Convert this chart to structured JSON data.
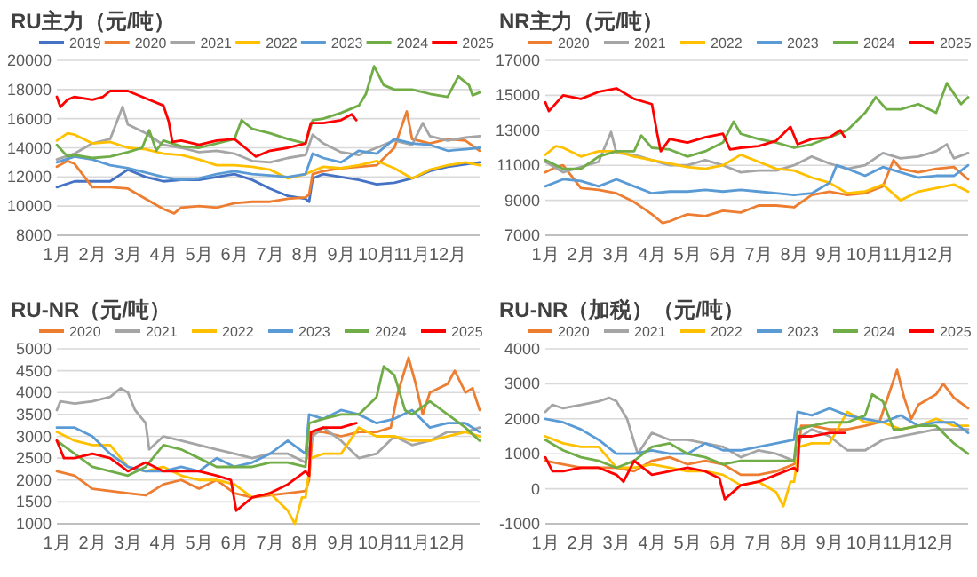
{
  "chart_data": [
    {
      "type": "line",
      "title": "RU主力（元/吨）",
      "xlim": [
        1,
        12.9
      ],
      "xticks": [
        {
          "value": 1,
          "label": "1月"
        },
        {
          "value": 2,
          "label": "2月"
        },
        {
          "value": 3,
          "label": "3月"
        },
        {
          "value": 4,
          "label": "4月"
        },
        {
          "value": 5,
          "label": "5月"
        },
        {
          "value": 6,
          "label": "6月"
        },
        {
          "value": 7,
          "label": "7月"
        },
        {
          "value": 8,
          "label": "8月"
        },
        {
          "value": 9,
          "label": "9月"
        },
        {
          "value": 10,
          "label": "10月"
        },
        {
          "value": 11,
          "label": "11月"
        },
        {
          "value": 12,
          "label": "12月"
        }
      ],
      "ylim": [
        8000,
        20000
      ],
      "yticks": [
        8000,
        10000,
        12000,
        14000,
        16000,
        18000,
        20000
      ],
      "grid": "y",
      "legend": "top",
      "line_style": "solid",
      "series": [
        {
          "name": "2019",
          "color": "#4472c4",
          "x": [
            1,
            1.5,
            2,
            2.5,
            3,
            3.5,
            4,
            4.5,
            5,
            5.5,
            6,
            6.5,
            7,
            7.5,
            8,
            8.1,
            8.2,
            8.5,
            9,
            9.5,
            10,
            10.5,
            11,
            11.5,
            12,
            12.9
          ],
          "values": [
            11300,
            11700,
            11700,
            11700,
            12500,
            12000,
            11700,
            11800,
            11800,
            12000,
            12200,
            11800,
            11200,
            10700,
            10500,
            10300,
            11900,
            12200,
            12000,
            11800,
            11500,
            11600,
            11900,
            12400,
            12700,
            13000
          ]
        },
        {
          "name": "2020",
          "color": "#ed7d31",
          "x": [
            1,
            1.3,
            1.5,
            2,
            2.5,
            3,
            3.5,
            4,
            4.3,
            4.5,
            5,
            5.5,
            6,
            6.5,
            7,
            7.5,
            8,
            8.1,
            8.2,
            8.5,
            9,
            9.5,
            10,
            10.5,
            10.85,
            11,
            11.5,
            12,
            12.5,
            12.9
          ],
          "values": [
            12700,
            13100,
            12900,
            11300,
            11300,
            11200,
            10500,
            9800,
            9500,
            9900,
            10000,
            9900,
            10200,
            10300,
            10300,
            10500,
            10600,
            10800,
            12200,
            12400,
            12600,
            12700,
            12800,
            14000,
            16500,
            14600,
            14300,
            14600,
            14500,
            13800
          ]
        },
        {
          "name": "2021",
          "color": "#a5a5a5",
          "x": [
            1,
            1.5,
            2,
            2.5,
            2.85,
            3,
            3.5,
            4,
            4.5,
            5,
            5.5,
            6,
            6.5,
            7,
            7.5,
            8,
            8.2,
            8.5,
            9,
            9.5,
            10,
            10.5,
            11,
            11.3,
            11.5,
            12,
            12.5,
            12.9
          ],
          "values": [
            13200,
            13600,
            14300,
            14600,
            16800,
            15600,
            15000,
            14200,
            14000,
            13700,
            13800,
            13600,
            13100,
            13000,
            13300,
            13500,
            14900,
            14300,
            13700,
            13500,
            14000,
            14500,
            14200,
            15700,
            14800,
            14500,
            14700,
            14800
          ]
        },
        {
          "name": "2022",
          "color": "#ffc000",
          "x": [
            1,
            1.3,
            1.5,
            2,
            2.5,
            3,
            3.5,
            4,
            4.5,
            5,
            5.5,
            6,
            6.5,
            7,
            7.5,
            8,
            8.5,
            9,
            9.5,
            10,
            10.5,
            11,
            11.5,
            12,
            12.5,
            12.9
          ],
          "values": [
            14500,
            15000,
            14900,
            14300,
            14400,
            14000,
            13900,
            13600,
            13500,
            13200,
            12800,
            12800,
            12700,
            12500,
            11900,
            12200,
            12700,
            12600,
            12800,
            13100,
            12600,
            11900,
            12500,
            12800,
            13000,
            12800
          ]
        },
        {
          "name": "2023",
          "color": "#5b9bd5",
          "x": [
            1,
            1.5,
            2,
            2.5,
            3,
            3.5,
            4,
            4.5,
            5,
            5.5,
            6,
            6.5,
            7,
            7.5,
            8,
            8.2,
            8.5,
            9,
            9.5,
            10,
            10.5,
            11,
            11.5,
            12,
            12.5,
            12.9
          ],
          "values": [
            13000,
            13400,
            13200,
            12800,
            12600,
            12300,
            12000,
            11800,
            11900,
            12200,
            12400,
            12200,
            12100,
            12000,
            12200,
            13600,
            13300,
            13000,
            13800,
            13600,
            14600,
            14300,
            14200,
            13800,
            13900,
            14000
          ]
        },
        {
          "name": "2024",
          "color": "#70ad47",
          "x": [
            1,
            1.3,
            1.5,
            2,
            2.5,
            3,
            3.4,
            3.6,
            3.8,
            4,
            4.5,
            5,
            5.5,
            6,
            6.2,
            6.5,
            7,
            7.5,
            8,
            8.2,
            8.5,
            9,
            9.5,
            9.7,
            9.93,
            10.2,
            10.5,
            11,
            11.5,
            12,
            12.3,
            12.6,
            12.7,
            12.9
          ],
          "values": [
            14200,
            13400,
            13500,
            13300,
            13400,
            13700,
            14000,
            15200,
            13800,
            14500,
            14100,
            14000,
            14300,
            14600,
            15900,
            15300,
            15000,
            14600,
            14300,
            15900,
            16000,
            16400,
            16900,
            17700,
            19600,
            18300,
            18000,
            18000,
            17700,
            17500,
            18900,
            18300,
            17600,
            17800
          ]
        },
        {
          "name": "2025",
          "color": "#ff0000",
          "x": [
            1,
            1.1,
            1.3,
            1.5,
            2,
            2.3,
            2.5,
            3,
            3.5,
            4,
            4.15,
            4.25,
            4.5,
            5,
            5.5,
            6,
            6.4,
            6.6,
            7,
            7.5,
            8,
            8.15,
            8.5,
            9,
            9.3,
            9.43
          ],
          "values": [
            17500,
            16800,
            17300,
            17500,
            17300,
            17500,
            17900,
            17900,
            17400,
            16900,
            15800,
            14400,
            14500,
            14200,
            14500,
            14600,
            13800,
            13400,
            13800,
            14000,
            14300,
            15700,
            15700,
            15900,
            16300,
            15900
          ]
        }
      ]
    },
    {
      "type": "line",
      "title": "NR主力（元/吨）",
      "xlim": [
        1,
        12.9
      ],
      "xticks": [
        {
          "value": 1,
          "label": "1月"
        },
        {
          "value": 2,
          "label": "2月"
        },
        {
          "value": 3,
          "label": "3月"
        },
        {
          "value": 4,
          "label": "4月"
        },
        {
          "value": 5,
          "label": "5月"
        },
        {
          "value": 6,
          "label": "6月"
        },
        {
          "value": 7,
          "label": "7月"
        },
        {
          "value": 8,
          "label": "8月"
        },
        {
          "value": 9,
          "label": "9月"
        },
        {
          "value": 10,
          "label": "10月"
        },
        {
          "value": 11,
          "label": "11月"
        },
        {
          "value": 12,
          "label": "12月"
        }
      ],
      "ylim": [
        7000,
        17000
      ],
      "yticks": [
        7000,
        9000,
        11000,
        13000,
        15000,
        17000
      ],
      "grid": "y",
      "legend": "top",
      "line_style": "solid",
      "series": [
        {
          "name": "2020",
          "color": "#ed7d31",
          "x": [
            1,
            1.3,
            1.5,
            2,
            2.5,
            3,
            3.5,
            4,
            4.3,
            4.5,
            5,
            5.5,
            6,
            6.5,
            7,
            7.5,
            8,
            8.5,
            9,
            9.5,
            10,
            10.5,
            10.8,
            11,
            11.5,
            12,
            12.5,
            12.9
          ],
          "values": [
            10600,
            10900,
            11000,
            9700,
            9600,
            9400,
            8900,
            8200,
            7700,
            7800,
            8200,
            8100,
            8400,
            8300,
            8700,
            8700,
            8600,
            9300,
            9500,
            9300,
            9400,
            9800,
            11300,
            10800,
            10600,
            10800,
            10900,
            10200
          ]
        },
        {
          "name": "2021",
          "color": "#a5a5a5",
          "x": [
            1,
            1.5,
            2,
            2.5,
            2.85,
            3,
            3.5,
            4,
            4.5,
            5,
            5.5,
            6,
            6.5,
            7,
            7.5,
            8,
            8.5,
            9,
            9.5,
            10,
            10.5,
            11,
            11.5,
            12,
            12.3,
            12.5,
            12.9
          ],
          "values": [
            11200,
            10600,
            10900,
            11200,
            12900,
            11700,
            11600,
            11300,
            11000,
            11000,
            11300,
            11000,
            10600,
            10700,
            10700,
            11000,
            11500,
            11100,
            10800,
            11000,
            11700,
            11400,
            11500,
            11800,
            12200,
            11400,
            11700
          ]
        },
        {
          "name": "2022",
          "color": "#ffc000",
          "x": [
            1,
            1.3,
            1.5,
            2,
            2.5,
            3,
            3.5,
            4,
            4.5,
            5,
            5.5,
            6,
            6.5,
            7,
            7.5,
            8,
            8.5,
            9,
            9.5,
            10,
            10.5,
            11,
            11.5,
            12,
            12.5,
            12.9
          ],
          "values": [
            11600,
            12100,
            12000,
            11500,
            11800,
            11800,
            11500,
            11300,
            11100,
            10900,
            10800,
            11000,
            11600,
            11200,
            10800,
            10700,
            10300,
            10000,
            9400,
            9500,
            9900,
            9000,
            9500,
            9700,
            9900,
            9500
          ]
        },
        {
          "name": "2023",
          "color": "#5b9bd5",
          "x": [
            1,
            1.5,
            2,
            2.5,
            3,
            3.5,
            4,
            4.5,
            5,
            5.5,
            6,
            6.5,
            7,
            7.5,
            8,
            8.5,
            9,
            9.2,
            9.5,
            10,
            10.5,
            11,
            11.5,
            12,
            12.5,
            12.9
          ],
          "values": [
            9800,
            10200,
            10100,
            9800,
            10200,
            9800,
            9400,
            9500,
            9500,
            9600,
            9500,
            9600,
            9500,
            9400,
            9300,
            9400,
            10000,
            11000,
            10800,
            10400,
            10900,
            10600,
            10300,
            10400,
            10400,
            11000
          ]
        },
        {
          "name": "2024",
          "color": "#70ad47",
          "x": [
            1,
            1.5,
            2,
            2.5,
            3,
            3.5,
            3.7,
            4,
            4.5,
            5,
            5.5,
            6,
            6.3,
            6.5,
            7,
            7.5,
            8,
            8.5,
            9,
            9.5,
            10,
            10.3,
            10.6,
            11,
            11.5,
            12,
            12.3,
            12.7,
            12.9
          ],
          "values": [
            11300,
            10800,
            10800,
            11500,
            11800,
            11800,
            12700,
            12000,
            11900,
            11500,
            11800,
            12300,
            13500,
            12800,
            12500,
            12300,
            12000,
            12200,
            12600,
            13000,
            14000,
            14900,
            14200,
            14200,
            14500,
            14000,
            15700,
            14500,
            14900
          ]
        },
        {
          "name": "2025",
          "color": "#ff0000",
          "x": [
            1,
            1.1,
            1.5,
            2,
            2.5,
            3,
            3.5,
            4,
            4.15,
            4.25,
            4.5,
            5,
            5.5,
            6,
            6.2,
            6.5,
            7,
            7.5,
            7.9,
            8.1,
            8.5,
            9,
            9.3,
            9.43
          ],
          "values": [
            14600,
            14100,
            15000,
            14800,
            15200,
            15400,
            14800,
            14500,
            12800,
            11800,
            12500,
            12300,
            12600,
            12800,
            11900,
            12000,
            12100,
            12400,
            13200,
            12200,
            12500,
            12600,
            13000,
            12600
          ]
        }
      ]
    },
    {
      "type": "line",
      "title": "RU-NR（元/吨）",
      "xlim": [
        1,
        12.9
      ],
      "xticks": [
        {
          "value": 1,
          "label": "1月"
        },
        {
          "value": 2,
          "label": "2月"
        },
        {
          "value": 3,
          "label": "3月"
        },
        {
          "value": 4,
          "label": "4月"
        },
        {
          "value": 5,
          "label": "5月"
        },
        {
          "value": 6,
          "label": "6月"
        },
        {
          "value": 7,
          "label": "7月"
        },
        {
          "value": 8,
          "label": "8月"
        },
        {
          "value": 9,
          "label": "9月"
        },
        {
          "value": 10,
          "label": "10月"
        },
        {
          "value": 11,
          "label": "11月"
        },
        {
          "value": 12,
          "label": "12月"
        }
      ],
      "ylim": [
        1000,
        5000
      ],
      "yticks": [
        1000,
        1500,
        2000,
        2500,
        3000,
        3500,
        4000,
        4500,
        5000
      ],
      "grid": "y",
      "legend": "top",
      "line_style": "solid",
      "series": [
        {
          "name": "2020",
          "color": "#ed7d31",
          "x": [
            1,
            1.5,
            2,
            2.5,
            3,
            3.5,
            4,
            4.5,
            5,
            5.5,
            6,
            6.5,
            7,
            7.5,
            8,
            8.1,
            8.2,
            8.5,
            9,
            9.5,
            10,
            10.4,
            10.6,
            10.9,
            11.1,
            11.3,
            11.5,
            12,
            12.2,
            12.5,
            12.7,
            12.9
          ],
          "values": [
            2200,
            2100,
            1800,
            1750,
            1700,
            1650,
            1900,
            2000,
            1800,
            2000,
            1700,
            1600,
            1650,
            1700,
            1750,
            2000,
            3100,
            3100,
            3000,
            3100,
            3100,
            3200,
            4000,
            4800,
            4200,
            3500,
            4000,
            4200,
            4500,
            4000,
            4100,
            3600
          ]
        },
        {
          "name": "2021",
          "color": "#a5a5a5",
          "x": [
            1,
            1.1,
            1.5,
            2,
            2.5,
            2.8,
            3,
            3.2,
            3.5,
            3.6,
            4,
            4.5,
            5,
            5.5,
            6,
            6.5,
            7,
            7.5,
            8,
            8.2,
            8.5,
            9,
            9.5,
            10,
            10.5,
            11,
            11.5,
            12,
            12.5,
            12.9
          ],
          "values": [
            3600,
            3800,
            3750,
            3800,
            3900,
            4100,
            4000,
            3600,
            3300,
            2700,
            3000,
            2900,
            2800,
            2700,
            2600,
            2500,
            2600,
            2600,
            2400,
            3000,
            3200,
            2900,
            2500,
            2600,
            3000,
            2800,
            2900,
            3100,
            3100,
            3200
          ]
        },
        {
          "name": "2022",
          "color": "#ffc000",
          "x": [
            1,
            1.5,
            2,
            2.5,
            3,
            3.5,
            4,
            4.5,
            5,
            5.5,
            6,
            6.5,
            7,
            7.5,
            7.7,
            7.9,
            8,
            8.15,
            8.5,
            9,
            9.5,
            10,
            10.5,
            11,
            11.5,
            12,
            12.5,
            12.9
          ],
          "values": [
            3100,
            2900,
            2800,
            2800,
            2300,
            2200,
            2300,
            2100,
            2000,
            2000,
            1900,
            1600,
            1700,
            1300,
            1000,
            1600,
            1600,
            2500,
            2600,
            2600,
            3200,
            3000,
            3000,
            2900,
            2900,
            3000,
            3100,
            3000
          ]
        },
        {
          "name": "2023",
          "color": "#5b9bd5",
          "x": [
            1,
            1.5,
            2,
            2.5,
            3,
            3.5,
            4,
            4.5,
            5,
            5.5,
            6,
            6.5,
            7,
            7.5,
            8,
            8.1,
            8.5,
            9,
            9.5,
            10,
            10.5,
            11,
            11.5,
            12,
            12.5,
            12.9
          ],
          "values": [
            3200,
            3200,
            3000,
            2600,
            2300,
            2200,
            2200,
            2300,
            2200,
            2500,
            2300,
            2400,
            2600,
            2900,
            2600,
            3500,
            3400,
            3600,
            3500,
            3300,
            3400,
            3600,
            3200,
            3300,
            3300,
            3100
          ]
        },
        {
          "name": "2024",
          "color": "#70ad47",
          "x": [
            1,
            1.5,
            2,
            2.5,
            3,
            3.5,
            4,
            4.5,
            5,
            5.5,
            6,
            6.5,
            7,
            7.5,
            8,
            8.1,
            8.5,
            9,
            9.5,
            10,
            10.2,
            10.5,
            10.8,
            11,
            11.5,
            12,
            12.5,
            12.9
          ],
          "values": [
            2900,
            2600,
            2300,
            2200,
            2100,
            2300,
            2800,
            2700,
            2500,
            2300,
            2300,
            2300,
            2400,
            2400,
            2300,
            3300,
            3400,
            3500,
            3500,
            3900,
            4600,
            4400,
            3600,
            3500,
            3800,
            3500,
            3200,
            2900
          ]
        },
        {
          "name": "2025",
          "color": "#ff0000",
          "x": [
            1,
            1.2,
            1.5,
            2,
            2.5,
            3,
            3.5,
            4,
            4.5,
            5,
            5.5,
            5.9,
            6.05,
            6.5,
            7,
            7.5,
            8,
            8.1,
            8.15,
            8.5,
            9,
            9.43
          ],
          "values": [
            2900,
            2500,
            2500,
            2600,
            2500,
            2200,
            2400,
            2200,
            2200,
            2200,
            2100,
            2000,
            1300,
            1600,
            1700,
            1900,
            2200,
            2100,
            3100,
            3200,
            3200,
            3300
          ]
        }
      ]
    },
    {
      "type": "line",
      "title": "RU-NR（加税）（元/吨）",
      "xlim": [
        1,
        12.9
      ],
      "xticks": [
        {
          "value": 1,
          "label": "1月"
        },
        {
          "value": 2,
          "label": "2月"
        },
        {
          "value": 3,
          "label": "3月"
        },
        {
          "value": 4,
          "label": "4月"
        },
        {
          "value": 5,
          "label": "5月"
        },
        {
          "value": 6,
          "label": "6月"
        },
        {
          "value": 7,
          "label": "7月"
        },
        {
          "value": 8,
          "label": "8月"
        },
        {
          "value": 9,
          "label": "9月"
        },
        {
          "value": 10,
          "label": "10月"
        },
        {
          "value": 11,
          "label": "11月"
        },
        {
          "value": 12,
          "label": "12月"
        }
      ],
      "ylim": [
        -1000,
        4000
      ],
      "yticks": [
        {
          "value": -1000,
          "label": "-1000"
        },
        0,
        1000,
        2000,
        3000,
        4000
      ],
      "grid": "y",
      "legend": "top",
      "line_style": "solid",
      "series": [
        {
          "name": "2020",
          "color": "#ed7d31",
          "x": [
            1,
            1.5,
            2,
            2.5,
            3,
            3.5,
            4,
            4.5,
            5,
            5.5,
            6,
            6.5,
            7,
            7.5,
            8,
            8.1,
            8.2,
            8.5,
            9,
            9.5,
            10,
            10.4,
            10.7,
            10.9,
            11.1,
            11.3,
            11.5,
            12,
            12.2,
            12.5,
            12.9
          ],
          "values": [
            800,
            700,
            600,
            600,
            600,
            500,
            800,
            900,
            700,
            800,
            700,
            400,
            400,
            500,
            700,
            800,
            1800,
            1800,
            1700,
            1700,
            1800,
            1900,
            2800,
            3400,
            2600,
            2000,
            2400,
            2700,
            3000,
            2600,
            2300
          ]
        },
        {
          "name": "2021",
          "color": "#a5a5a5",
          "x": [
            1,
            1.2,
            1.5,
            2,
            2.5,
            2.8,
            3,
            3.3,
            3.6,
            4,
            4.5,
            5,
            5.5,
            6,
            6.5,
            7,
            7.5,
            8,
            8.2,
            8.5,
            9,
            9.5,
            10,
            10.5,
            11,
            11.5,
            12,
            12.5,
            12.9
          ],
          "values": [
            2200,
            2400,
            2300,
            2400,
            2500,
            2600,
            2500,
            2000,
            1000,
            1600,
            1400,
            1400,
            1300,
            1200,
            900,
            1100,
            1000,
            800,
            1500,
            1700,
            1500,
            1100,
            1100,
            1400,
            1500,
            1600,
            1700,
            1700,
            1700
          ]
        },
        {
          "name": "2022",
          "color": "#ffc000",
          "x": [
            1,
            1.5,
            2,
            2.5,
            3,
            3.5,
            4,
            4.5,
            5,
            5.5,
            6,
            6.5,
            7,
            7.5,
            7.7,
            7.9,
            8,
            8.15,
            8.5,
            9,
            9.5,
            10,
            10.5,
            11,
            11.5,
            12,
            12.5,
            12.9
          ],
          "values": [
            1500,
            1300,
            1200,
            1200,
            600,
            600,
            700,
            600,
            500,
            500,
            400,
            100,
            200,
            -100,
            -500,
            200,
            200,
            1200,
            1300,
            1300,
            2200,
            1900,
            1900,
            1700,
            1800,
            2000,
            1800,
            1800
          ]
        },
        {
          "name": "2023",
          "color": "#5b9bd5",
          "x": [
            1,
            1.5,
            2,
            2.5,
            3,
            3.5,
            4,
            4.5,
            5,
            5.5,
            6,
            6.5,
            7,
            7.5,
            8,
            8.1,
            8.5,
            9,
            9.5,
            10,
            10.5,
            11,
            11.5,
            12,
            12.5,
            12.9
          ],
          "values": [
            2000,
            1900,
            1700,
            1400,
            1000,
            1000,
            1100,
            1000,
            1000,
            1300,
            1100,
            1100,
            1200,
            1300,
            1400,
            2200,
            2100,
            2300,
            2100,
            2000,
            1900,
            2100,
            1800,
            1900,
            1900,
            1600
          ]
        },
        {
          "name": "2024",
          "color": "#70ad47",
          "x": [
            1,
            1.5,
            2,
            2.5,
            3,
            3.5,
            4,
            4.5,
            5,
            5.5,
            6,
            6.5,
            7,
            7.5,
            8,
            8.1,
            8.5,
            9,
            9.5,
            10,
            10.2,
            10.5,
            10.8,
            11,
            11.5,
            12,
            12.5,
            12.9
          ],
          "values": [
            1400,
            1100,
            900,
            800,
            600,
            800,
            1200,
            1300,
            1000,
            900,
            700,
            800,
            800,
            800,
            800,
            1700,
            1800,
            1900,
            1900,
            2100,
            2700,
            2500,
            1700,
            1700,
            1800,
            1800,
            1300,
            1000
          ]
        },
        {
          "name": "2025",
          "color": "#ff0000",
          "x": [
            1,
            1.2,
            1.5,
            2,
            2.5,
            3,
            3.2,
            3.5,
            4,
            4.5,
            5,
            5.5,
            5.9,
            6.05,
            6.5,
            7,
            7.5,
            8,
            8.1,
            8.15,
            8.5,
            9,
            9.43
          ],
          "values": [
            900,
            500,
            500,
            600,
            600,
            400,
            200,
            800,
            400,
            500,
            600,
            500,
            300,
            -300,
            100,
            200,
            400,
            600,
            500,
            1500,
            1500,
            1600,
            1600
          ]
        }
      ]
    }
  ]
}
